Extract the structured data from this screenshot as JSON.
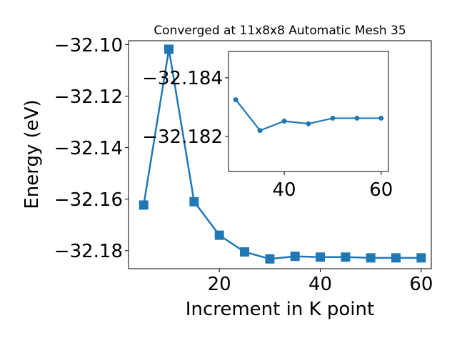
{
  "chart_data": [
    {
      "type": "line",
      "title": "Converged at 11x8x8 Automatic Mesh 35",
      "xlabel": "Increment in K point",
      "ylabel": "Energy (eV)",
      "xlim": [
        2,
        62
      ],
      "ylim": [
        -32.187,
        -32.0985
      ],
      "x_ticks": [
        20,
        40,
        60
      ],
      "x_tick_labels": [
        "20",
        "40",
        "60"
      ],
      "y_ticks": [
        -32.1,
        -32.12,
        -32.14,
        -32.16,
        -32.18
      ],
      "y_tick_labels": [
        "−32.10",
        "−32.12",
        "−32.14",
        "−32.16",
        "−32.18"
      ],
      "grid": false,
      "marker": "square",
      "color": "#1f77b4",
      "x": [
        5,
        10,
        15,
        20,
        25,
        30,
        35,
        40,
        45,
        50,
        55,
        60
      ],
      "y": [
        -32.1623,
        -32.1018,
        -32.161,
        -32.174,
        -32.1805,
        -32.1832,
        -32.1822,
        -32.1825,
        -32.1825,
        -32.1828,
        -32.1828,
        -32.1828
      ]
    },
    {
      "type": "line",
      "title": "",
      "xlabel": "",
      "ylabel": "",
      "xlim": [
        28.5,
        61.5
      ],
      "ylim": [
        -32.1808,
        -32.1849
      ],
      "x_ticks": [
        40,
        60
      ],
      "x_tick_labels": [
        "40",
        "60"
      ],
      "y_ticks": [
        -32.184,
        -32.182
      ],
      "y_tick_labels": [
        "−32.184",
        "−32.182"
      ],
      "grid": false,
      "marker": "circle",
      "color": "#1f77b4",
      "x": [
        30,
        35,
        40,
        45,
        50,
        55,
        60
      ],
      "y": [
        -32.18325,
        -32.1822,
        -32.18252,
        -32.18243,
        -32.18262,
        -32.18262,
        -32.18262
      ]
    }
  ]
}
